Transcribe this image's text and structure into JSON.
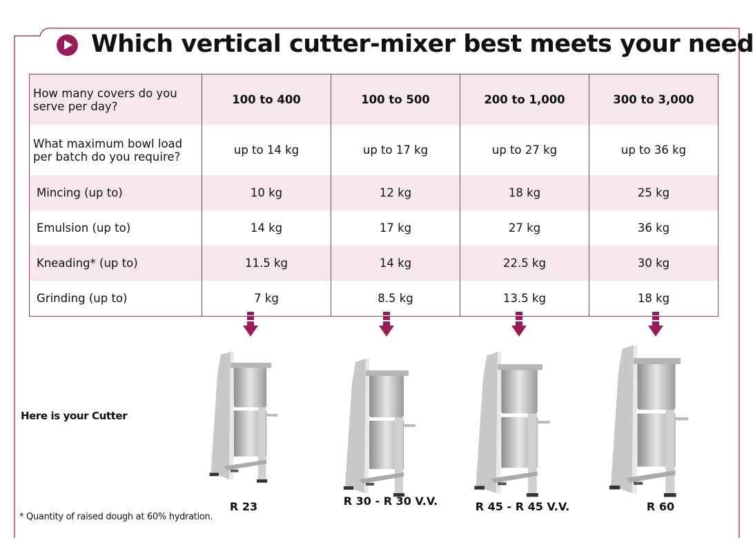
{
  "title": "Which vertical cutter-mixer best meets your needs?",
  "accent": "#9b1b5a",
  "rows": [
    {
      "label": "How many covers do you serve per day?",
      "values": [
        "100 to 400",
        "100 to 500",
        "200 to 1,000",
        "300 to 3,000"
      ]
    },
    {
      "label": "What maximum bowl load per batch do you require?",
      "values": [
        "up to 14 kg",
        "up to 17 kg",
        "up to 27 kg",
        "up to 36 kg"
      ]
    },
    {
      "label": "Mincing (up to)",
      "values": [
        "10 kg",
        "12 kg",
        "18 kg",
        "25 kg"
      ]
    },
    {
      "label": "Emulsion (up to)",
      "values": [
        "14 kg",
        "17 kg",
        "27 kg",
        "36 kg"
      ]
    },
    {
      "label": "Kneading* (up to)",
      "values": [
        "11.5 kg",
        "14 kg",
        "22.5 kg",
        "30 kg"
      ]
    },
    {
      "label": "Grinding (up to)",
      "values": [
        "7 kg",
        "8.5 kg",
        "13.5 kg",
        "18 kg"
      ]
    }
  ],
  "result_label": "Here is your Cutter",
  "models": [
    "R 23",
    "R 30 - R 30 V.V.",
    "R 45 - R 45 V.V.",
    "R 60"
  ],
  "footnote": "* Quantity of raised dough at 60% hydration."
}
